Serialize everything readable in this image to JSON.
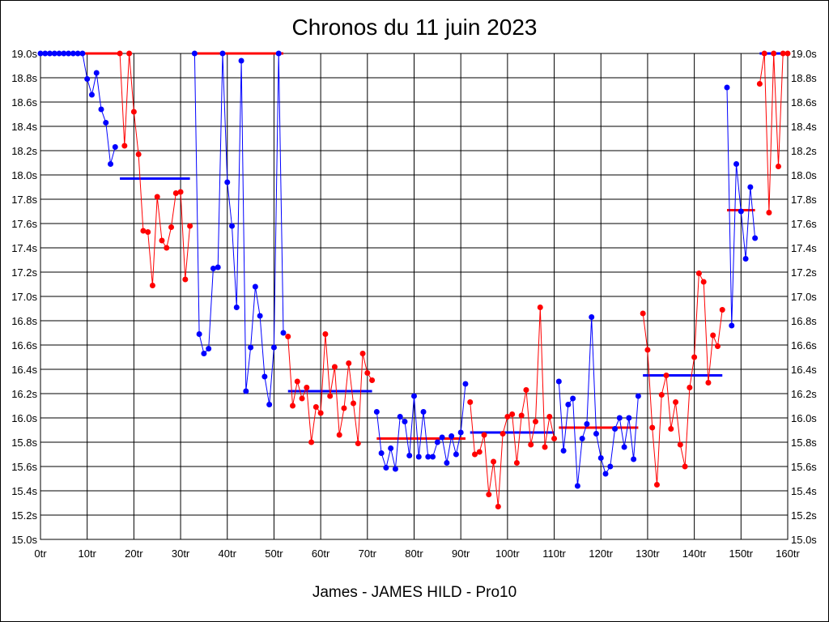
{
  "chart_data": {
    "type": "line",
    "title": "Chronos du 11 juin 2023",
    "subtitle": "James - JAMES HILD - Pro10",
    "xlim": [
      0,
      160
    ],
    "ylim": [
      15.0,
      19.0
    ],
    "x_ticks": [
      "0tr",
      "10tr",
      "20tr",
      "30tr",
      "40tr",
      "50tr",
      "60tr",
      "70tr",
      "80tr",
      "90tr",
      "100tr",
      "110tr",
      "120tr",
      "130tr",
      "140tr",
      "150tr",
      "160tr"
    ],
    "y_ticks": [
      "15.0s",
      "15.2s",
      "15.4s",
      "15.6s",
      "15.8s",
      "16.0s",
      "16.2s",
      "16.4s",
      "16.6s",
      "16.8s",
      "17.0s",
      "17.2s",
      "17.4s",
      "17.6s",
      "17.8s",
      "18.0s",
      "18.2s",
      "18.4s",
      "18.6s",
      "18.8s",
      "19.0s"
    ],
    "grid": true,
    "series": [
      {
        "color": "#0000ff",
        "points": [
          [
            0,
            19.0
          ],
          [
            1,
            19.0
          ],
          [
            2,
            19.0
          ],
          [
            3,
            19.0
          ],
          [
            4,
            19.0
          ],
          [
            5,
            19.0
          ],
          [
            6,
            19.0
          ],
          [
            7,
            19.0
          ],
          [
            8,
            19.0
          ],
          [
            9,
            19.0
          ],
          [
            10,
            18.79
          ],
          [
            11,
            18.66
          ],
          [
            12,
            18.84
          ],
          [
            13,
            18.54
          ],
          [
            14,
            18.43
          ],
          [
            15,
            18.09
          ],
          [
            16,
            18.23
          ]
        ]
      },
      {
        "color": "#ff0000",
        "points": [
          [
            17,
            19.0
          ],
          [
            18,
            18.24
          ],
          [
            19,
            19.0
          ],
          [
            20,
            18.52
          ],
          [
            21,
            18.17
          ],
          [
            22,
            17.54
          ],
          [
            23,
            17.53
          ],
          [
            24,
            17.09
          ],
          [
            25,
            17.82
          ],
          [
            26,
            17.46
          ],
          [
            27,
            17.4
          ],
          [
            28,
            17.57
          ],
          [
            29,
            17.85
          ],
          [
            30,
            17.86
          ],
          [
            31,
            17.14
          ],
          [
            32,
            17.58
          ]
        ]
      },
      {
        "color": "#0000ff",
        "points": [
          [
            33,
            19.0
          ],
          [
            34,
            16.69
          ],
          [
            35,
            16.53
          ],
          [
            36,
            16.57
          ],
          [
            37,
            17.23
          ],
          [
            38,
            17.24
          ],
          [
            39,
            19.0
          ],
          [
            40,
            17.94
          ],
          [
            41,
            17.58
          ],
          [
            42,
            16.91
          ],
          [
            43,
            18.94
          ],
          [
            44,
            16.22
          ],
          [
            45,
            16.58
          ],
          [
            46,
            17.08
          ],
          [
            47,
            16.84
          ],
          [
            48,
            16.34
          ],
          [
            49,
            16.11
          ],
          [
            50,
            16.58
          ],
          [
            51,
            19.0
          ],
          [
            52,
            16.7
          ]
        ]
      },
      {
        "color": "#ff0000",
        "points": [
          [
            53,
            16.67
          ],
          [
            54,
            16.1
          ],
          [
            55,
            16.3
          ],
          [
            56,
            16.16
          ],
          [
            57,
            16.25
          ],
          [
            58,
            15.8
          ],
          [
            59,
            16.09
          ],
          [
            60,
            16.04
          ],
          [
            61,
            16.69
          ],
          [
            62,
            16.18
          ],
          [
            63,
            16.42
          ],
          [
            64,
            15.86
          ],
          [
            65,
            16.08
          ],
          [
            66,
            16.45
          ],
          [
            67,
            16.12
          ],
          [
            68,
            15.79
          ],
          [
            69,
            16.53
          ],
          [
            70,
            16.37
          ],
          [
            71,
            16.31
          ]
        ]
      },
      {
        "color": "#0000ff",
        "points": [
          [
            72,
            16.05
          ],
          [
            73,
            15.71
          ],
          [
            74,
            15.59
          ],
          [
            75,
            15.75
          ],
          [
            76,
            15.58
          ],
          [
            77,
            16.01
          ],
          [
            78,
            15.97
          ],
          [
            79,
            15.69
          ],
          [
            80,
            16.18
          ],
          [
            81,
            15.68
          ],
          [
            82,
            16.05
          ],
          [
            83,
            15.68
          ],
          [
            84,
            15.68
          ],
          [
            85,
            15.8
          ],
          [
            86,
            15.84
          ],
          [
            87,
            15.63
          ],
          [
            88,
            15.85
          ],
          [
            89,
            15.7
          ],
          [
            90,
            15.88
          ],
          [
            91,
            16.28
          ]
        ]
      },
      {
        "color": "#ff0000",
        "points": [
          [
            92,
            16.13
          ],
          [
            93,
            15.7
          ],
          [
            94,
            15.72
          ],
          [
            95,
            15.86
          ],
          [
            96,
            15.37
          ],
          [
            97,
            15.64
          ],
          [
            98,
            15.27
          ],
          [
            99,
            15.87
          ],
          [
            100,
            16.01
          ],
          [
            101,
            16.03
          ],
          [
            102,
            15.63
          ],
          [
            103,
            16.02
          ],
          [
            104,
            16.23
          ],
          [
            105,
            15.78
          ],
          [
            106,
            15.97
          ],
          [
            107,
            16.91
          ],
          [
            108,
            15.76
          ],
          [
            109,
            16.01
          ],
          [
            110,
            15.83
          ]
        ]
      },
      {
        "color": "#0000ff",
        "points": [
          [
            111,
            16.3
          ],
          [
            112,
            15.73
          ],
          [
            113,
            16.11
          ],
          [
            114,
            16.16
          ],
          [
            115,
            15.44
          ],
          [
            116,
            15.83
          ],
          [
            117,
            15.95
          ],
          [
            118,
            16.83
          ],
          [
            119,
            15.87
          ],
          [
            120,
            15.67
          ],
          [
            121,
            15.54
          ],
          [
            122,
            15.6
          ],
          [
            123,
            15.91
          ],
          [
            124,
            16.0
          ],
          [
            125,
            15.76
          ],
          [
            126,
            16.0
          ],
          [
            127,
            15.66
          ],
          [
            128,
            16.18
          ]
        ]
      },
      {
        "color": "#ff0000",
        "points": [
          [
            129,
            16.86
          ],
          [
            130,
            16.56
          ],
          [
            131,
            15.92
          ],
          [
            132,
            15.45
          ],
          [
            133,
            16.19
          ],
          [
            134,
            16.35
          ],
          [
            135,
            15.91
          ],
          [
            136,
            16.13
          ],
          [
            137,
            15.78
          ],
          [
            138,
            15.6
          ],
          [
            139,
            16.25
          ],
          [
            140,
            16.5
          ],
          [
            141,
            17.19
          ],
          [
            142,
            17.12
          ],
          [
            143,
            16.29
          ],
          [
            144,
            16.68
          ],
          [
            145,
            16.59
          ],
          [
            146,
            16.89
          ]
        ]
      },
      {
        "color": "#0000ff",
        "points": [
          [
            147,
            18.72
          ],
          [
            148,
            16.76
          ],
          [
            149,
            18.09
          ],
          [
            150,
            17.7
          ],
          [
            151,
            17.31
          ],
          [
            152,
            17.9
          ],
          [
            153,
            17.48
          ]
        ]
      },
      {
        "color": "#ff0000",
        "points": [
          [
            154,
            18.75
          ],
          [
            155,
            19.0
          ],
          [
            156,
            17.69
          ],
          [
            157,
            19.0
          ],
          [
            158,
            18.07
          ],
          [
            159,
            19.0
          ],
          [
            160,
            19.0
          ]
        ]
      }
    ],
    "averages": [
      {
        "color": "#ff0000",
        "x_range": [
          9,
          17
        ],
        "y": 19.0
      },
      {
        "color": "#0000ff",
        "x_range": [
          17,
          32
        ],
        "y": 17.97
      },
      {
        "color": "#ff0000",
        "x_range": [
          33,
          52
        ],
        "y": 19.0
      },
      {
        "color": "#0000ff",
        "x_range": [
          53,
          71
        ],
        "y": 16.22
      },
      {
        "color": "#ff0000",
        "x_range": [
          72,
          91
        ],
        "y": 15.83
      },
      {
        "color": "#0000ff",
        "x_range": [
          92,
          110
        ],
        "y": 15.88
      },
      {
        "color": "#ff0000",
        "x_range": [
          111,
          128
        ],
        "y": 15.92
      },
      {
        "color": "#0000ff",
        "x_range": [
          129,
          146
        ],
        "y": 16.35
      },
      {
        "color": "#ff0000",
        "x_range": [
          147,
          153
        ],
        "y": 17.71
      },
      {
        "color": "#0000ff",
        "x_range": [
          154,
          160
        ],
        "y": 19.0
      }
    ]
  }
}
